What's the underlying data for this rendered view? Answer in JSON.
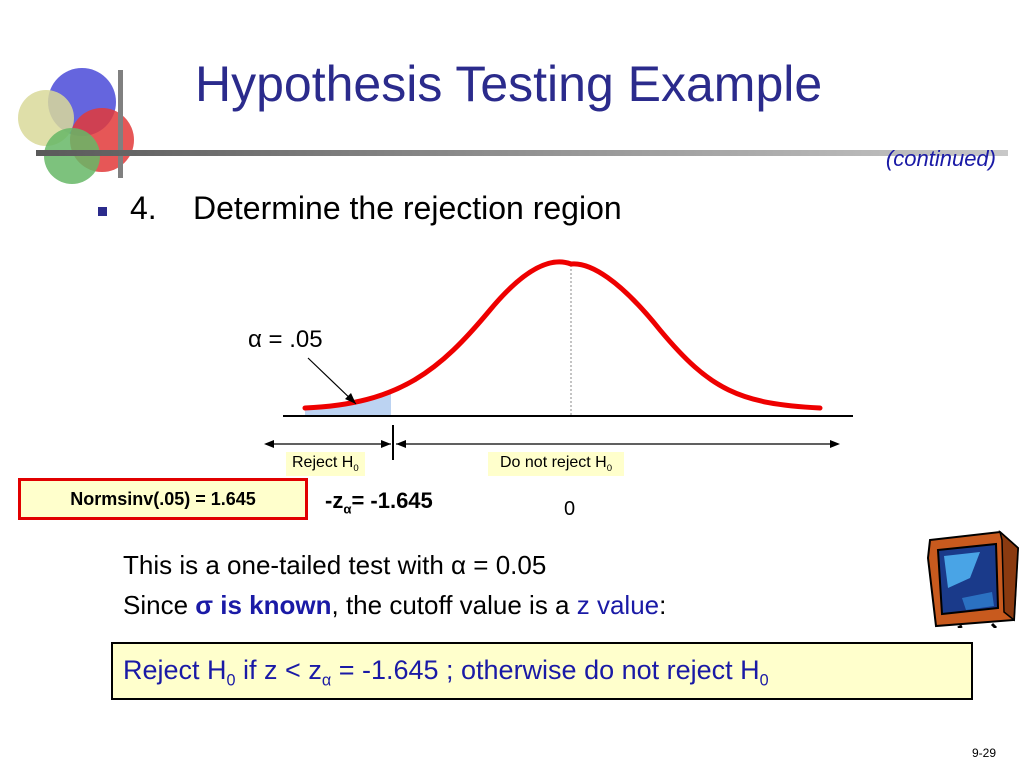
{
  "slide": {
    "title": "Hypothesis Testing Example",
    "subtitle_note": "(continued)",
    "step_number": "4.",
    "step_text": "Determine the rejection region",
    "slide_number": "9-29"
  },
  "figure": {
    "alpha_text": "α = .05",
    "reject_label": "Reject H",
    "reject_sub": "0",
    "do_not_reject_label": "Do not reject H",
    "do_not_reject_sub": "0",
    "z_critical_prefix": "-z",
    "z_critical_sub": "α",
    "z_critical_suffix": "= -1.645",
    "center_tick": "0",
    "curve_color": "#ee0000",
    "shade_color": "#bcd3f2"
  },
  "normsinv_box": {
    "text": "Normsinv(.05) = 1.645",
    "border_color": "#e10000",
    "fill_color": "#ffffcc"
  },
  "body": {
    "line1_prefix": "This is a one-tailed test with ",
    "line1_alpha": "α",
    "line1_suffix": " = 0.05",
    "line2_prefix": "Since ",
    "line2_emph": "σ is known",
    "line2_mid": ", the cutoff value is a ",
    "line2_blue": "z value",
    "line2_end": ":"
  },
  "decision_rule": {
    "p1": "Reject H",
    "sub1": "0",
    "p2": " if  z < z",
    "sub2": "α",
    "p3": " = -1.645 ;  otherwise do not reject H",
    "sub3": "0"
  },
  "icons": {
    "logo": "overlapping-circles-logo",
    "tv": "television-icon"
  }
}
